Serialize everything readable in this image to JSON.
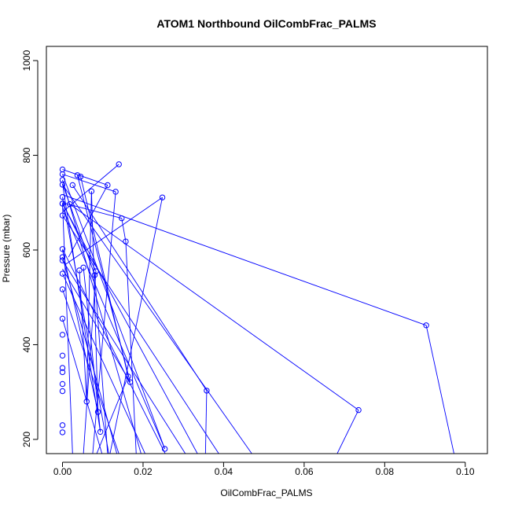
{
  "chart_data": {
    "type": "scatter",
    "title": "ATOM1 Northbound OilCombFrac_PALMS",
    "xlabel": "OilCombFrac_PALMS",
    "ylabel": "Pressure (mbar)",
    "xlim": [
      -0.004,
      0.1055
    ],
    "ylim": [
      1030,
      170
    ],
    "y_reversed": true,
    "grid": false,
    "series_color": "#0000ff",
    "x_ticks": [
      0.0,
      0.02,
      0.04,
      0.06,
      0.08,
      0.1
    ],
    "x_tick_labels": [
      "0.00",
      "0.02",
      "0.04",
      "0.06",
      "0.08",
      "0.10"
    ],
    "y_ticks": [
      200,
      400,
      600,
      800,
      1000
    ],
    "y_tick_labels": [
      "200",
      "400",
      "600",
      "800",
      "1000"
    ],
    "series": [
      {
        "points": [
          {
            "x": 0.0,
            "y": 770
          },
          {
            "x": 0.0,
            "y": 760
          },
          {
            "x": 0.0,
            "y": 748
          },
          {
            "x": 0.0,
            "y": 738
          },
          {
            "x": 0.0,
            "y": 712
          },
          {
            "x": 0.0,
            "y": 698
          },
          {
            "x": 0.0,
            "y": 698
          },
          {
            "x": 0.0,
            "y": 673
          },
          {
            "x": 0.0,
            "y": 602
          },
          {
            "x": 0.0,
            "y": 585
          },
          {
            "x": 0.0,
            "y": 578
          },
          {
            "x": 0.0,
            "y": 550
          },
          {
            "x": 0.0,
            "y": 517
          },
          {
            "x": 0.0,
            "y": 455
          },
          {
            "x": 0.0,
            "y": 421
          },
          {
            "x": 0.0,
            "y": 377
          },
          {
            "x": 0.0,
            "y": 351
          },
          {
            "x": 0.0,
            "y": 342
          },
          {
            "x": 0.0,
            "y": 317
          },
          {
            "x": 0.0,
            "y": 302
          },
          {
            "x": 0.0,
            "y": 230
          },
          {
            "x": 0.0,
            "y": 215
          },
          {
            "x": 0.0025,
            "y": 737
          },
          {
            "x": 0.0018,
            "y": 697
          },
          {
            "x": 0.0037,
            "y": 758
          },
          {
            "x": 0.0045,
            "y": 755
          },
          {
            "x": 0.0042,
            "y": 557
          },
          {
            "x": 0.0052,
            "y": 563
          },
          {
            "x": 0.006,
            "y": 280
          },
          {
            "x": 0.0072,
            "y": 724
          },
          {
            "x": 0.008,
            "y": 547
          },
          {
            "x": 0.0083,
            "y": 555
          },
          {
            "x": 0.0088,
            "y": 258
          },
          {
            "x": 0.0094,
            "y": 216
          },
          {
            "x": 0.0112,
            "y": 737
          },
          {
            "x": 0.0132,
            "y": 723
          },
          {
            "x": 0.014,
            "y": 781
          },
          {
            "x": 0.0147,
            "y": 667
          },
          {
            "x": 0.0157,
            "y": 618
          },
          {
            "x": 0.0163,
            "y": 333
          },
          {
            "x": 0.0168,
            "y": 321
          },
          {
            "x": 0.0248,
            "y": 711
          },
          {
            "x": 0.0254,
            "y": 180
          },
          {
            "x": 0.0358,
            "y": 303
          },
          {
            "x": 0.0735,
            "y": 262
          },
          {
            "x": 0.0903,
            "y": 441
          }
        ],
        "segments": [
          [
            0.0,
            698,
            0.0025,
            170
          ],
          [
            0.0,
            712,
            0.0115,
            170
          ],
          [
            0.0,
            585,
            0.0135,
            170
          ],
          [
            0.0,
            550,
            0.0205,
            170
          ],
          [
            0.0,
            602,
            0.0255,
            170
          ],
          [
            0.0,
            738,
            0.047,
            170
          ],
          [
            0.0,
            673,
            0.0388,
            170
          ],
          [
            0.0,
            578,
            0.0305,
            170
          ],
          [
            0.0,
            698,
            0.0335,
            170
          ],
          [
            0.0,
            517,
            0.014,
            170
          ],
          [
            0.0,
            455,
            0.0098,
            170
          ],
          [
            0.0,
            748,
            0.0195,
            170
          ],
          [
            0.0018,
            697,
            0.0735,
            262
          ],
          [
            0.0,
            717,
            0.0903,
            441
          ],
          [
            0.0025,
            737,
            0.0358,
            303
          ],
          [
            0.0903,
            441,
            0.0972,
            170
          ],
          [
            0.0735,
            262,
            0.0682,
            170
          ],
          [
            0.0358,
            303,
            0.0355,
            170
          ],
          [
            0.0045,
            755,
            0.0163,
            333
          ],
          [
            0.0037,
            758,
            0.0168,
            321
          ],
          [
            0.0072,
            724,
            0.0088,
            258
          ],
          [
            0.0042,
            557,
            0.006,
            280
          ],
          [
            0.0052,
            563,
            0.0094,
            216
          ],
          [
            0.0,
            760,
            0.0254,
            180
          ],
          [
            0.0132,
            723,
            0.0075,
            170
          ],
          [
            0.0112,
            737,
            0.0015,
            585
          ],
          [
            0.014,
            781,
            0.0,
            680
          ],
          [
            0.0147,
            667,
            0.0157,
            618
          ],
          [
            0.0157,
            618,
            0.0183,
            170
          ],
          [
            0.0147,
            667,
            0.0,
            700
          ],
          [
            0.0248,
            711,
            0.0118,
            170
          ],
          [
            0.0248,
            711,
            0.0008,
            570
          ],
          [
            0.008,
            547,
            0.0112,
            170
          ],
          [
            0.0083,
            555,
            0.0052,
            170
          ],
          [
            0.0163,
            333,
            0.0085,
            170
          ],
          [
            0.0168,
            321,
            0.0,
            560
          ],
          [
            0.006,
            280,
            0.0072,
            724
          ],
          [
            0.0088,
            258,
            0.0,
            600
          ],
          [
            0.0094,
            216,
            0.0,
            740
          ],
          [
            0.0254,
            180,
            0.0,
            690
          ],
          [
            0.0,
            770,
            0.0112,
            737
          ],
          [
            0.0,
            760,
            0.0132,
            723
          ],
          [
            0.0,
            740,
            0.008,
            547
          ],
          [
            0.0,
            700,
            0.0083,
            555
          ]
        ]
      }
    ]
  }
}
